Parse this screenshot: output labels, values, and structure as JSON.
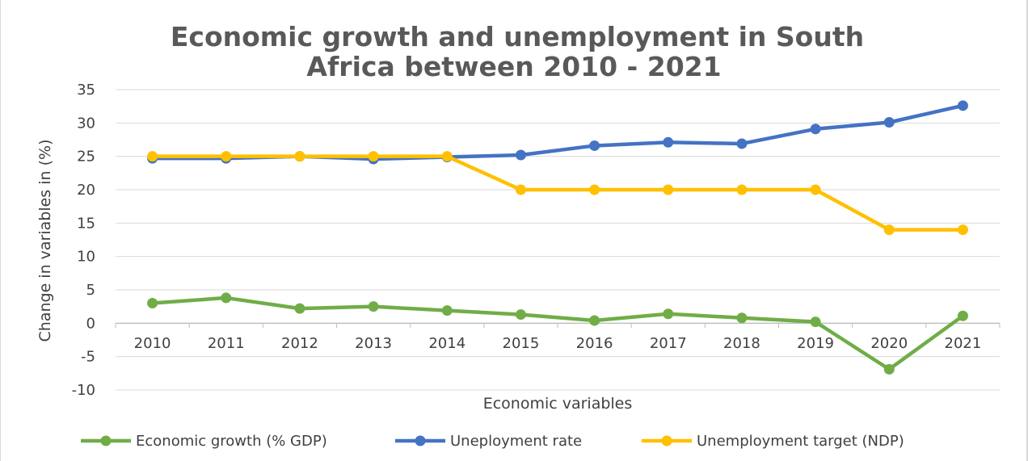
{
  "chart_data": {
    "type": "line",
    "title_line1": "Economic growth and unemployment in South",
    "title_line2": "Africa between 2010 - 2021",
    "xlabel": "Economic variables",
    "ylabel": "Change in variables in (%)",
    "categories": [
      "2010",
      "2011",
      "2012",
      "2013",
      "2014",
      "2015",
      "2016",
      "2017",
      "2018",
      "2019",
      "2020",
      "2021"
    ],
    "ylim": [
      -10,
      35
    ],
    "yticks": [
      -10,
      -5,
      0,
      5,
      10,
      15,
      20,
      25,
      30,
      35
    ],
    "grid": true,
    "legend_position": "bottom",
    "series": [
      {
        "name": "Economic growth (% GDP)",
        "color": "#70ad47",
        "values": [
          3.0,
          3.8,
          2.2,
          2.5,
          1.9,
          1.3,
          0.4,
          1.4,
          0.8,
          0.2,
          -6.9,
          1.1
        ]
      },
      {
        "name": "Uneployment rate",
        "color": "#4472c4",
        "values": [
          24.7,
          24.7,
          25.0,
          24.6,
          24.9,
          25.2,
          26.6,
          27.1,
          26.9,
          29.1,
          30.1,
          32.6
        ]
      },
      {
        "name": "Unemployment target (NDP)",
        "color": "#ffc000",
        "values": [
          25,
          25,
          25,
          25,
          25,
          20,
          20,
          20,
          20,
          20,
          14,
          14
        ]
      }
    ]
  }
}
